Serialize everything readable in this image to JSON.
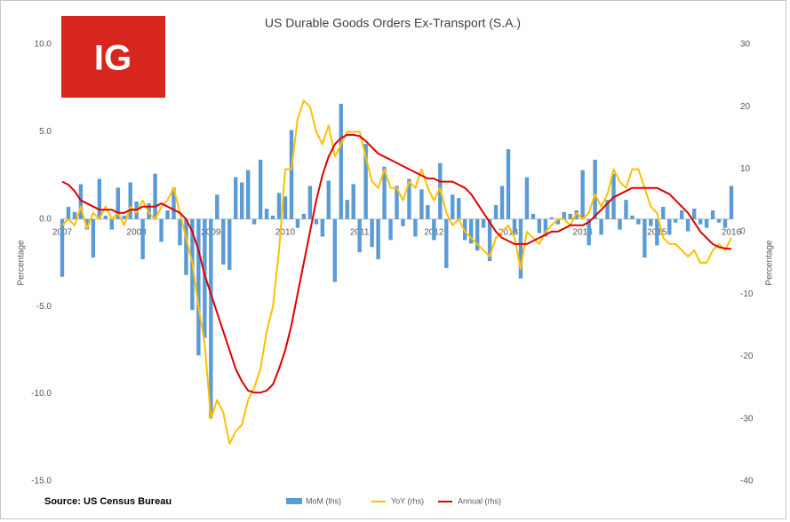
{
  "logo": "IG",
  "chart_data": {
    "type": "combo",
    "title": "US Durable Goods Orders Ex-Transport (S.A.)",
    "source": "Source: US Census Bureau",
    "ylabel": "Percentage",
    "y2label": "Percentage",
    "categories": [
      "2007",
      null,
      null,
      null,
      null,
      null,
      null,
      null,
      null,
      null,
      null,
      null,
      "2008",
      null,
      null,
      null,
      null,
      null,
      null,
      null,
      null,
      null,
      null,
      null,
      "2009",
      null,
      null,
      null,
      null,
      null,
      null,
      null,
      null,
      null,
      null,
      null,
      "2010",
      null,
      null,
      null,
      null,
      null,
      null,
      null,
      null,
      null,
      null,
      null,
      "2011",
      null,
      null,
      null,
      null,
      null,
      null,
      null,
      null,
      null,
      null,
      null,
      "2012",
      null,
      null,
      null,
      null,
      null,
      null,
      null,
      null,
      null,
      null,
      null,
      "2013",
      null,
      null,
      null,
      null,
      null,
      null,
      null,
      null,
      null,
      null,
      null,
      "2014",
      null,
      null,
      null,
      null,
      null,
      null,
      null,
      null,
      null,
      null,
      null,
      "2015",
      null,
      null,
      null,
      null,
      null,
      null,
      null,
      null,
      null,
      null,
      null,
      "2016"
    ],
    "ylim": [
      -15,
      10
    ],
    "yticks": [
      {
        "value": -15,
        "label": "-15.0"
      },
      {
        "value": -10,
        "label": "-10.0"
      },
      {
        "value": -5,
        "label": "-5.0"
      },
      {
        "value": 0,
        "label": "0.0"
      },
      {
        "value": 5,
        "label": "5.0"
      },
      {
        "value": 10,
        "label": "10.0"
      }
    ],
    "y2lim": [
      -40,
      30
    ],
    "y2ticks": [
      -40,
      -30,
      -20,
      -10,
      0,
      10,
      20,
      30
    ],
    "grid": false,
    "series": [
      {
        "name": "MoM (lhs)",
        "type": "bar",
        "axis": "y",
        "color": "#5b9bd5",
        "values": [
          -3.3,
          0.7,
          0.4,
          2.0,
          -0.6,
          -2.2,
          2.3,
          0.2,
          -0.6,
          1.8,
          0.2,
          2.1,
          1.0,
          -2.3,
          0.9,
          2.6,
          -1.3,
          0.5,
          1.8,
          -1.5,
          -3.2,
          -5.2,
          -7.8,
          -6.8,
          -11.4,
          1.4,
          -2.6,
          -2.9,
          2.4,
          2.1,
          2.8,
          -0.3,
          3.4,
          0.6,
          0.2,
          1.5,
          1.3,
          5.1,
          -0.5,
          0.3,
          1.9,
          -0.3,
          -1.0,
          2.2,
          -3.6,
          6.6,
          1.1,
          2.0,
          -1.9,
          4.3,
          -1.6,
          -2.3,
          3.0,
          -1.2,
          1.9,
          -0.4,
          2.3,
          -1.0,
          1.7,
          0.8,
          -1.2,
          3.2,
          -2.8,
          1.4,
          1.2,
          -1.2,
          -1.4,
          -1.8,
          -0.5,
          -2.4,
          0.8,
          1.9,
          4.0,
          -0.8,
          -3.4,
          2.4,
          0.3,
          -0.8,
          -1.0,
          0.1,
          -0.3,
          0.4,
          0.3,
          0.5,
          2.8,
          -1.5,
          3.4,
          -0.9,
          1.1,
          2.6,
          -0.6,
          1.1,
          0.2,
          -0.3,
          -2.2,
          -0.4,
          -1.5,
          0.7,
          -0.9,
          -0.2,
          0.5,
          -0.7,
          0.6,
          -0.3,
          -0.5,
          0.5,
          -0.2,
          -0.5,
          1.9
        ]
      },
      {
        "name": "YoY (rhs)",
        "type": "line",
        "axis": "y2",
        "color": "#ffc000",
        "values": [
          1,
          2,
          1,
          4,
          0.5,
          3,
          2,
          4,
          2,
          3,
          1,
          4,
          3,
          5,
          3,
          2,
          4,
          5,
          7,
          3,
          -1,
          -5,
          -12,
          -18,
          -30,
          -27,
          -29,
          -34,
          -32,
          -31,
          -27,
          -25,
          -22,
          -16,
          -12,
          -3,
          10,
          10,
          18,
          21,
          20,
          16,
          14,
          17,
          12,
          14,
          16,
          16,
          16,
          12,
          8,
          7,
          10,
          7,
          7,
          5,
          8,
          7,
          10,
          7,
          5,
          7,
          3,
          1,
          2,
          0,
          -1,
          -2,
          -3,
          -4,
          -1,
          0,
          1,
          -1,
          -6,
          0,
          -1,
          -2,
          0,
          1,
          2,
          2,
          1,
          3,
          2,
          3,
          6,
          4,
          6,
          10,
          8,
          7,
          10,
          10,
          7,
          4,
          3,
          -1,
          -2,
          -2,
          -3,
          -4,
          -3,
          -5,
          -5,
          -3,
          -2,
          -3,
          -1
        ]
      },
      {
        "name": "Annual (rhs)",
        "type": "line",
        "axis": "y2",
        "color": "#e00000",
        "values": [
          8,
          7.5,
          6.5,
          5,
          4.5,
          4,
          3.5,
          3.5,
          3.5,
          3,
          3,
          3.5,
          3.5,
          4,
          4,
          4,
          4.5,
          4,
          3.5,
          3,
          2,
          0,
          -3,
          -7,
          -10,
          -13,
          -16,
          -19,
          -22,
          -24,
          -25.5,
          -25.8,
          -25.8,
          -25.5,
          -24.5,
          -22,
          -19,
          -15,
          -10,
          -5,
          0,
          5,
          9,
          12,
          14,
          15,
          15.5,
          15.5,
          15.3,
          14.5,
          13.5,
          12.5,
          12,
          11.5,
          11,
          10.5,
          10,
          9.5,
          9,
          8.5,
          8.5,
          8,
          8,
          8,
          7.5,
          7,
          6,
          4.5,
          3,
          1.5,
          0,
          -1,
          -1.5,
          -2,
          -2,
          -2,
          -1.5,
          -1,
          -0.5,
          0,
          0,
          0.5,
          1,
          1,
          1,
          1.5,
          2.5,
          3.5,
          4.5,
          5.5,
          6,
          6.5,
          7,
          7,
          7,
          7,
          7,
          6.5,
          6,
          5,
          4,
          3,
          1.5,
          0,
          -1,
          -2,
          -2.5,
          -2.7,
          -2.8
        ]
      }
    ]
  }
}
